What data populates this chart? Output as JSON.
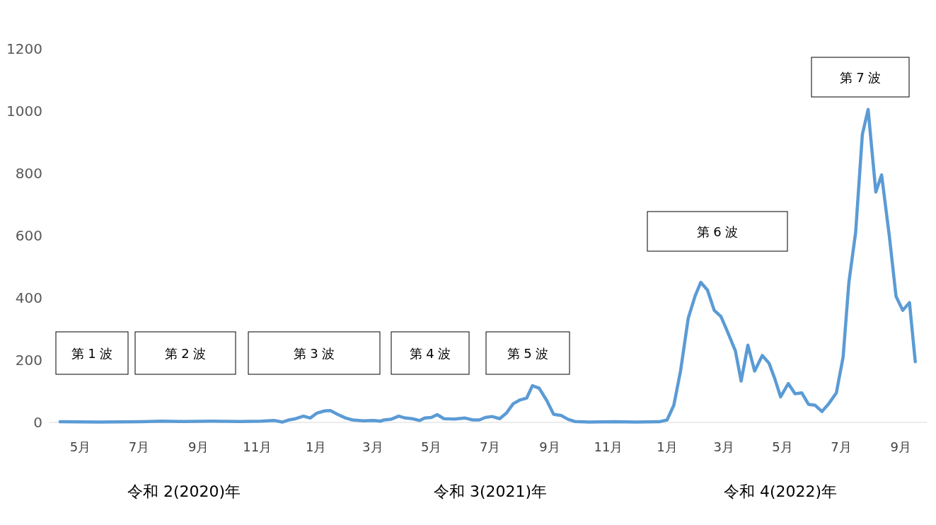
{
  "chart_data": {
    "type": "line",
    "color": "#5b9bd5",
    "line_style": "solid",
    "marker": "none",
    "grid": false,
    "x": [
      "2020-04-10",
      "2020-05-20",
      "2020-07-03",
      "2020-07-25",
      "2020-08-16",
      "2020-09-14",
      "2020-10-14",
      "2020-11-05",
      "2020-11-19",
      "2020-11-27",
      "2020-12-04",
      "2020-12-11",
      "2020-12-19",
      "2020-12-26",
      "2021-01-02",
      "2021-01-10",
      "2021-01-16",
      "2021-01-24",
      "2021-02-01",
      "2021-02-08",
      "2021-02-19",
      "2021-03-02",
      "2021-03-09",
      "2021-03-13",
      "2021-03-20",
      "2021-03-28",
      "2021-04-04",
      "2021-04-11",
      "2021-04-19",
      "2021-04-24",
      "2021-05-01",
      "2021-05-07",
      "2021-05-14",
      "2021-05-25",
      "2021-06-05",
      "2021-06-13",
      "2021-06-20",
      "2021-06-26",
      "2021-07-03",
      "2021-07-11",
      "2021-07-18",
      "2021-07-25",
      "2021-08-01",
      "2021-08-08",
      "2021-08-14",
      "2021-08-21",
      "2021-08-29",
      "2021-09-05",
      "2021-09-13",
      "2021-09-20",
      "2021-09-27",
      "2021-10-12",
      "2021-11-07",
      "2021-11-29",
      "2021-12-24",
      "2022-01-01",
      "2022-01-08",
      "2022-01-15",
      "2022-01-23",
      "2022-01-30",
      "2022-02-05",
      "2022-02-12",
      "2022-02-19",
      "2022-02-26",
      "2022-03-05",
      "2022-03-13",
      "2022-03-19",
      "2022-03-26",
      "2022-04-02",
      "2022-04-10",
      "2022-04-17",
      "2022-04-23",
      "2022-04-29",
      "2022-05-07",
      "2022-05-14",
      "2022-05-21",
      "2022-05-28",
      "2022-06-04",
      "2022-06-11",
      "2022-06-18",
      "2022-06-26",
      "2022-07-03",
      "2022-07-09",
      "2022-07-16",
      "2022-07-23",
      "2022-07-29",
      "2022-08-06",
      "2022-08-12",
      "2022-08-20",
      "2022-08-27",
      "2022-09-03",
      "2022-09-10",
      "2022-09-16"
    ],
    "values": [
      2,
      1,
      2,
      4,
      3,
      4,
      3,
      4,
      6,
      1,
      8,
      12,
      20,
      14,
      30,
      37,
      38,
      25,
      14,
      8,
      5,
      6,
      4,
      8,
      10,
      20,
      14,
      12,
      6,
      14,
      16,
      25,
      12,
      11,
      14,
      8,
      8,
      16,
      19,
      12,
      30,
      60,
      72,
      78,
      118,
      110,
      70,
      26,
      22,
      10,
      3,
      1,
      2,
      1,
      2,
      8,
      55,
      165,
      335,
      405,
      450,
      425,
      360,
      340,
      290,
      230,
      133,
      248,
      165,
      215,
      190,
      140,
      82,
      125,
      92,
      95,
      58,
      55,
      35,
      60,
      95,
      210,
      450,
      610,
      925,
      1005,
      740,
      795,
      600,
      405,
      360,
      385,
      195
    ],
    "xlim": [
      "2020-03-30",
      "2022-09-28"
    ],
    "xticks": [
      {
        "value": "2020-05-01",
        "label": "5月"
      },
      {
        "value": "2020-07-01",
        "label": "7月"
      },
      {
        "value": "2020-09-01",
        "label": "9月"
      },
      {
        "value": "2020-11-01",
        "label": "11月"
      },
      {
        "value": "2021-01-01",
        "label": "1月"
      },
      {
        "value": "2021-03-01",
        "label": "3月"
      },
      {
        "value": "2021-05-01",
        "label": "5月"
      },
      {
        "value": "2021-07-01",
        "label": "7月"
      },
      {
        "value": "2021-09-01",
        "label": "9月"
      },
      {
        "value": "2021-11-01",
        "label": "11月"
      },
      {
        "value": "2022-01-01",
        "label": "1月"
      },
      {
        "value": "2022-03-01",
        "label": "3月"
      },
      {
        "value": "2022-05-01",
        "label": "5月"
      },
      {
        "value": "2022-07-01",
        "label": "7月"
      },
      {
        "value": "2022-09-01",
        "label": "9月"
      }
    ],
    "ylim": [
      0,
      1200
    ],
    "yticks": [
      0,
      200,
      400,
      600,
      800,
      1000,
      1200
    ],
    "annotations": [
      "第 1 波",
      "第 2 波",
      "第 3 波",
      "第 4 波",
      "第 5 波",
      "第 6 波",
      "第 7 波",
      "令和 2(2020)年",
      "令和 3(2021)年",
      "令和 4(2022)年"
    ]
  }
}
